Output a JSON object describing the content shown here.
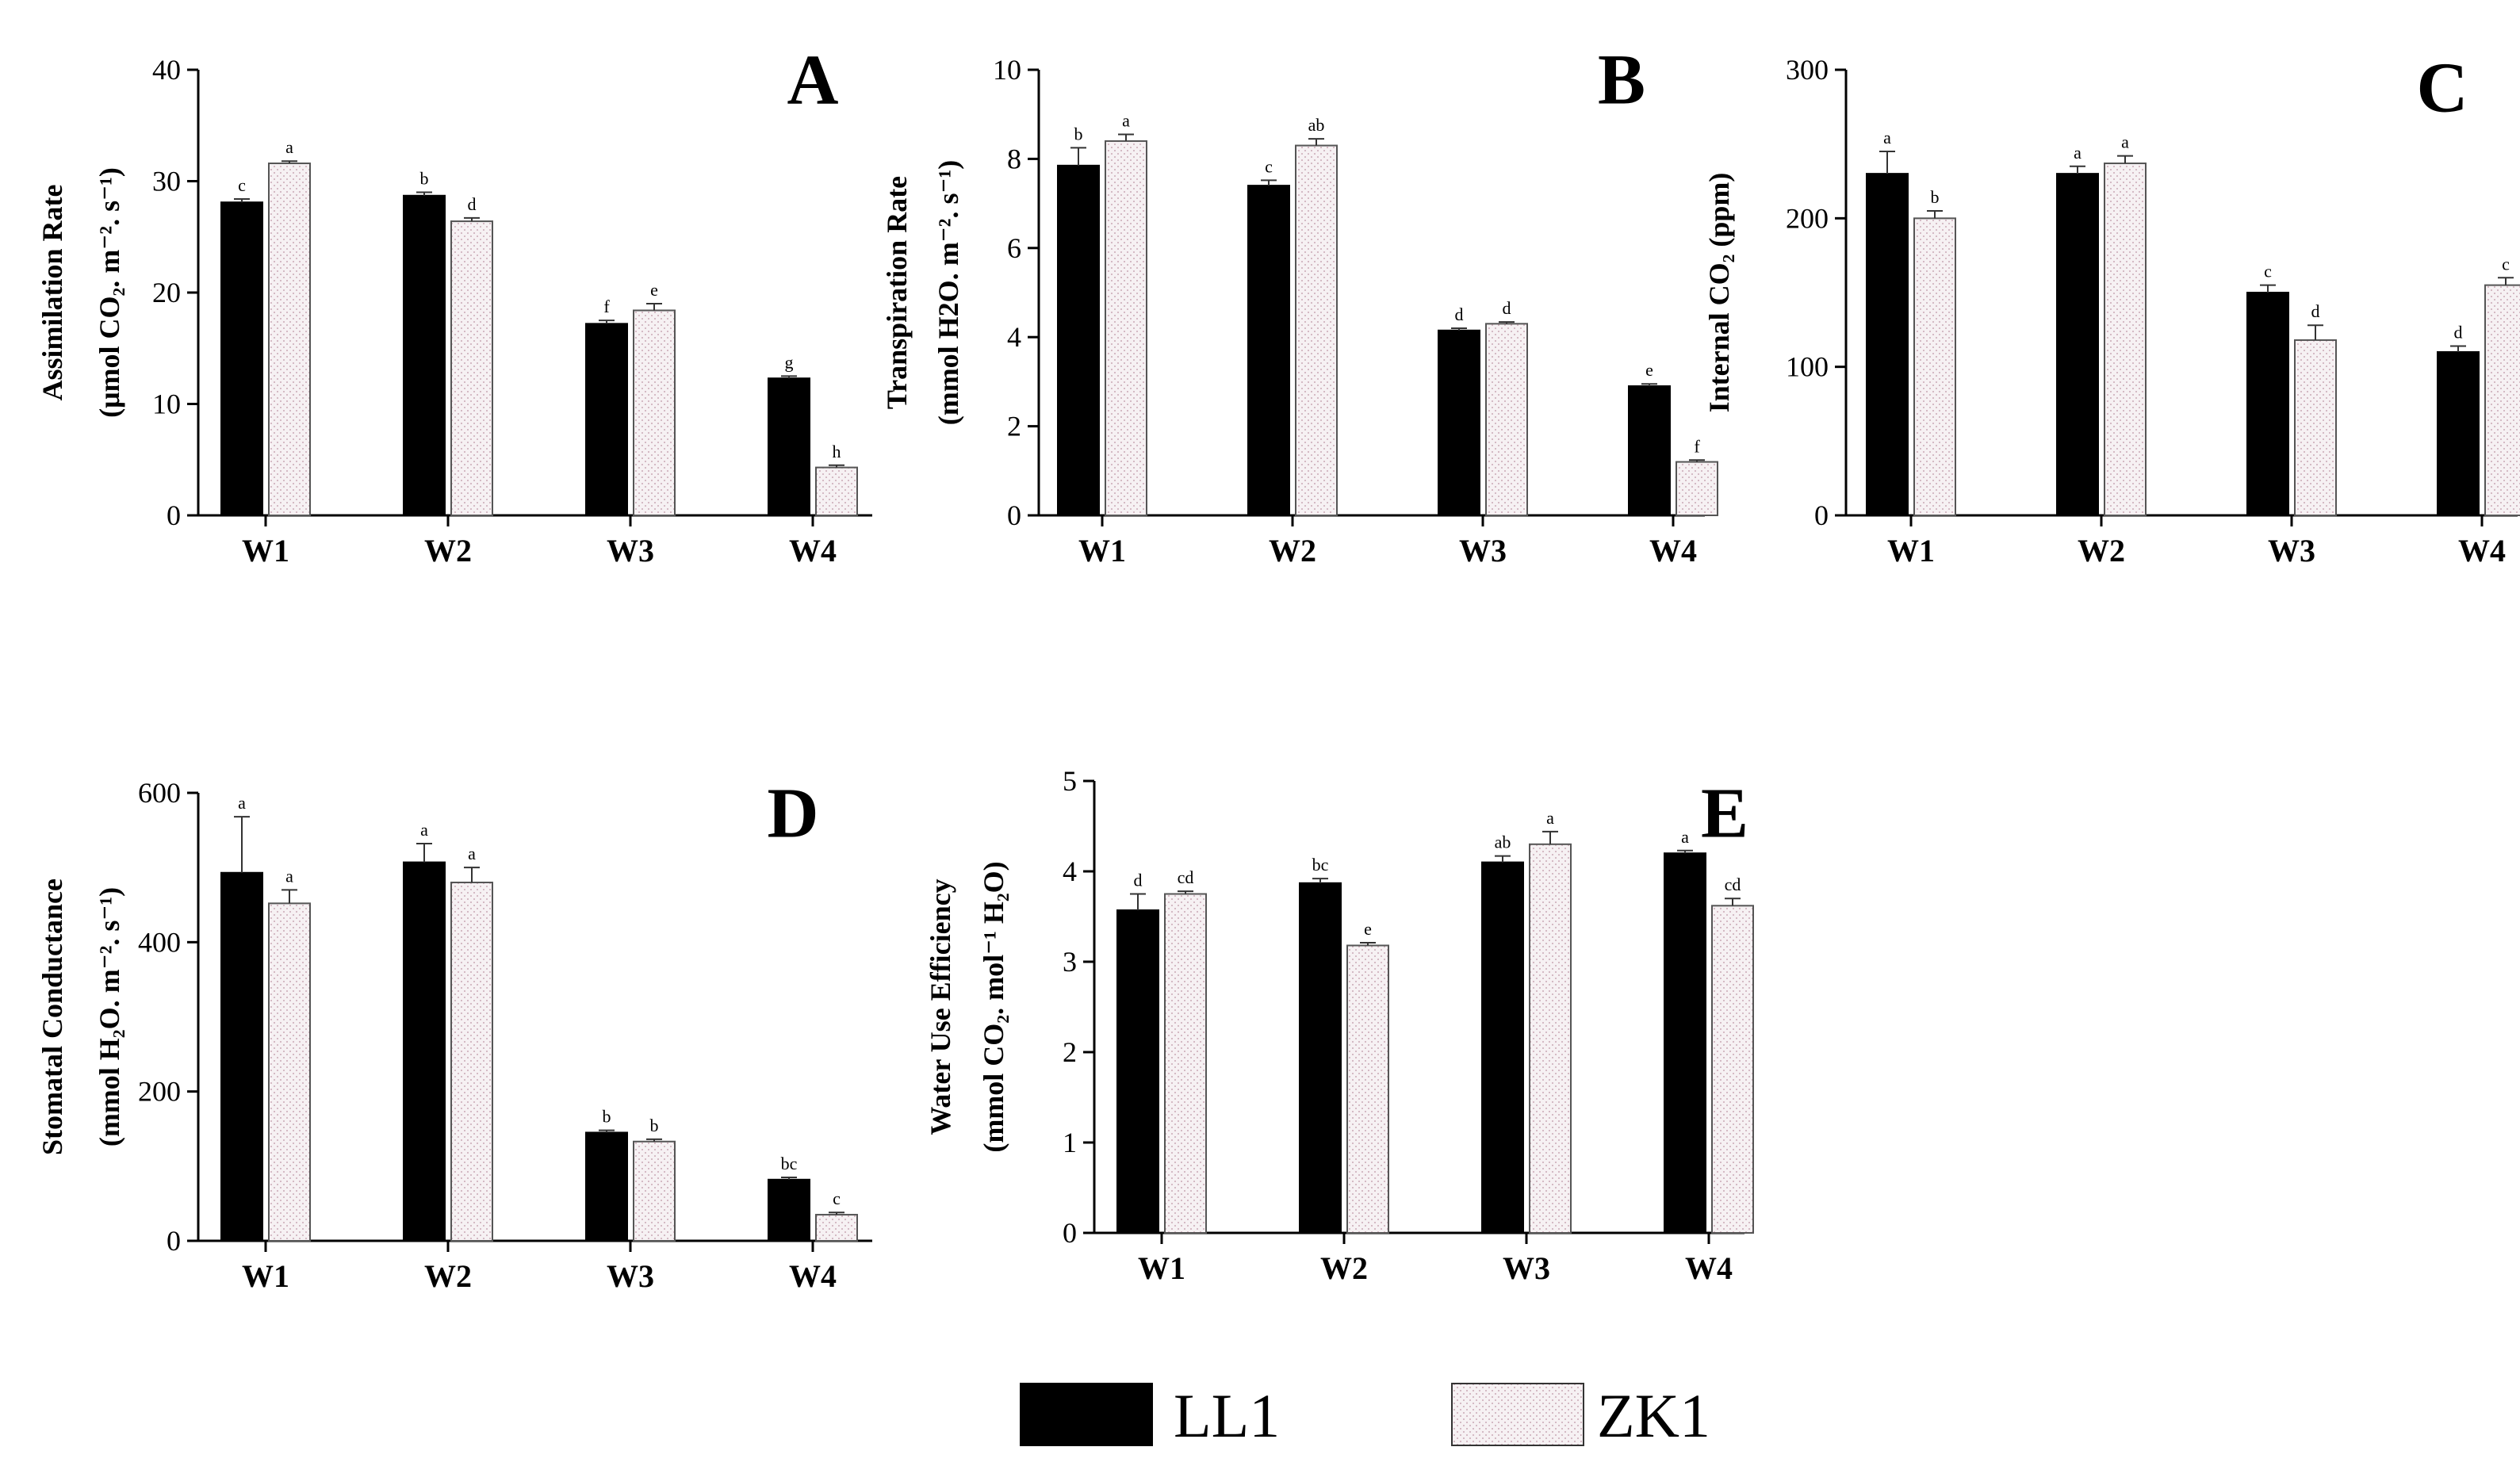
{
  "colors": {
    "LL1": "#000000",
    "ZK1": "#f6f1f3",
    "ZK1_dots": "#c9a9b6",
    "axis": "#000000"
  },
  "legend": {
    "items": [
      {
        "key": "LL1",
        "label": "LL1"
      },
      {
        "key": "ZK1",
        "label": "ZK1"
      }
    ],
    "placement": "bottom-center"
  },
  "chart_data": [
    {
      "type": "bar",
      "panel": "A",
      "ylabel_lines": [
        "Assimilation Rate",
        "(μmol CO₂. m⁻². s⁻¹)"
      ],
      "ylim": [
        0,
        40
      ],
      "yticks": [
        0,
        10,
        20,
        30,
        40
      ],
      "categories": [
        "W1",
        "W2",
        "W3",
        "W4"
      ],
      "series": [
        {
          "name": "LL1",
          "values": [
            28.1,
            28.7,
            17.2,
            12.3
          ],
          "errors": [
            0.3,
            0.3,
            0.3,
            0.2
          ],
          "letters": [
            "c",
            "b",
            "f",
            "g"
          ]
        },
        {
          "name": "ZK1",
          "values": [
            31.6,
            26.4,
            18.4,
            4.3
          ],
          "errors": [
            0.2,
            0.3,
            0.6,
            0.2
          ],
          "letters": [
            "a",
            "d",
            "e",
            "h"
          ]
        }
      ]
    },
    {
      "type": "bar",
      "panel": "B",
      "ylabel_lines": [
        "Transpiration Rate",
        "(mmol H2O. m⁻². s⁻¹)"
      ],
      "ylim": [
        0,
        10
      ],
      "yticks": [
        0,
        2,
        4,
        6,
        8,
        10
      ],
      "categories": [
        "W1",
        "W2",
        "W3",
        "W4"
      ],
      "series": [
        {
          "name": "LL1",
          "values": [
            7.85,
            7.4,
            4.15,
            2.9
          ],
          "errors": [
            0.4,
            0.12,
            0.05,
            0.05
          ],
          "letters": [
            "b",
            "c",
            "d",
            "e"
          ]
        },
        {
          "name": "ZK1",
          "values": [
            8.4,
            8.3,
            4.3,
            1.2
          ],
          "errors": [
            0.15,
            0.15,
            0.04,
            0.04
          ],
          "letters": [
            "a",
            "ab",
            "d",
            "f"
          ]
        }
      ]
    },
    {
      "type": "bar",
      "panel": "C",
      "ylabel_lines": [
        "Internal CO₂ (ppm)"
      ],
      "ylim": [
        0,
        300
      ],
      "yticks": [
        0,
        100,
        200,
        300
      ],
      "categories": [
        "W1",
        "W2",
        "W3",
        "W4"
      ],
      "series": [
        {
          "name": "LL1",
          "values": [
            230,
            230,
            150,
            110
          ],
          "errors": [
            15,
            5,
            5,
            4
          ],
          "letters": [
            "a",
            "a",
            "c",
            "d"
          ]
        },
        {
          "name": "ZK1",
          "values": [
            200,
            237,
            118,
            155
          ],
          "errors": [
            5,
            5,
            10,
            5
          ],
          "letters": [
            "b",
            "a",
            "d",
            "c"
          ]
        }
      ]
    },
    {
      "type": "bar",
      "panel": "D",
      "ylabel_lines": [
        "Stomatal Conductance",
        "(mmol H₂O. m⁻². s⁻¹)"
      ],
      "ylim": [
        0,
        600
      ],
      "yticks": [
        0,
        200,
        400,
        600
      ],
      "categories": [
        "W1",
        "W2",
        "W3",
        "W4"
      ],
      "series": [
        {
          "name": "LL1",
          "values": [
            493,
            507,
            145,
            82
          ],
          "errors": [
            75,
            25,
            3,
            3
          ],
          "letters": [
            "a",
            "a",
            "b",
            "bc"
          ]
        },
        {
          "name": "ZK1",
          "values": [
            452,
            480,
            133,
            35
          ],
          "errors": [
            18,
            20,
            3,
            3
          ],
          "letters": [
            "a",
            "a",
            "b",
            "c"
          ]
        }
      ]
    },
    {
      "type": "bar",
      "panel": "E",
      "ylabel_lines": [
        "Water Use Efficiency",
        "(mmol CO₂. mol⁻¹ H₂O)"
      ],
      "ylim": [
        0,
        5
      ],
      "yticks": [
        0,
        1,
        2,
        3,
        4,
        5
      ],
      "categories": [
        "W1",
        "W2",
        "W3",
        "W4"
      ],
      "series": [
        {
          "name": "LL1",
          "values": [
            3.57,
            3.87,
            4.1,
            4.2
          ],
          "errors": [
            0.18,
            0.05,
            0.07,
            0.03
          ],
          "letters": [
            "d",
            "bc",
            "ab",
            "a"
          ]
        },
        {
          "name": "ZK1",
          "values": [
            3.75,
            3.18,
            4.3,
            3.62
          ],
          "errors": [
            0.03,
            0.03,
            0.14,
            0.08
          ],
          "letters": [
            "cd",
            "e",
            "a",
            "cd"
          ]
        }
      ]
    }
  ]
}
